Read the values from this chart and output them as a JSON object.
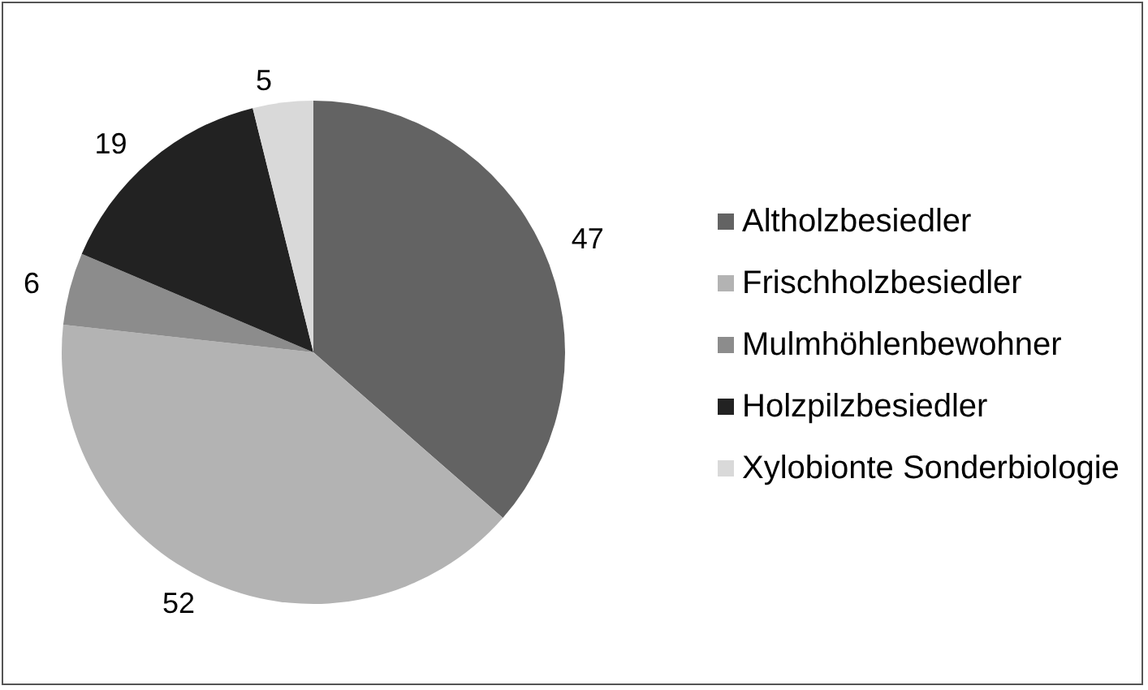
{
  "chart_data": {
    "type": "pie",
    "categories": [
      "Altholzbesiedler",
      "Frischholzbesiedler",
      "Mulmhöhlenbewohner",
      "Holzpilzbesiedler",
      "Xylobionte Sonderbiologie"
    ],
    "values": [
      47,
      52,
      6,
      19,
      5
    ],
    "colors": [
      "#636363",
      "#b3b3b3",
      "#8c8c8c",
      "#222222",
      "#d9d9d9"
    ],
    "data_labels": true,
    "legend": "right"
  }
}
